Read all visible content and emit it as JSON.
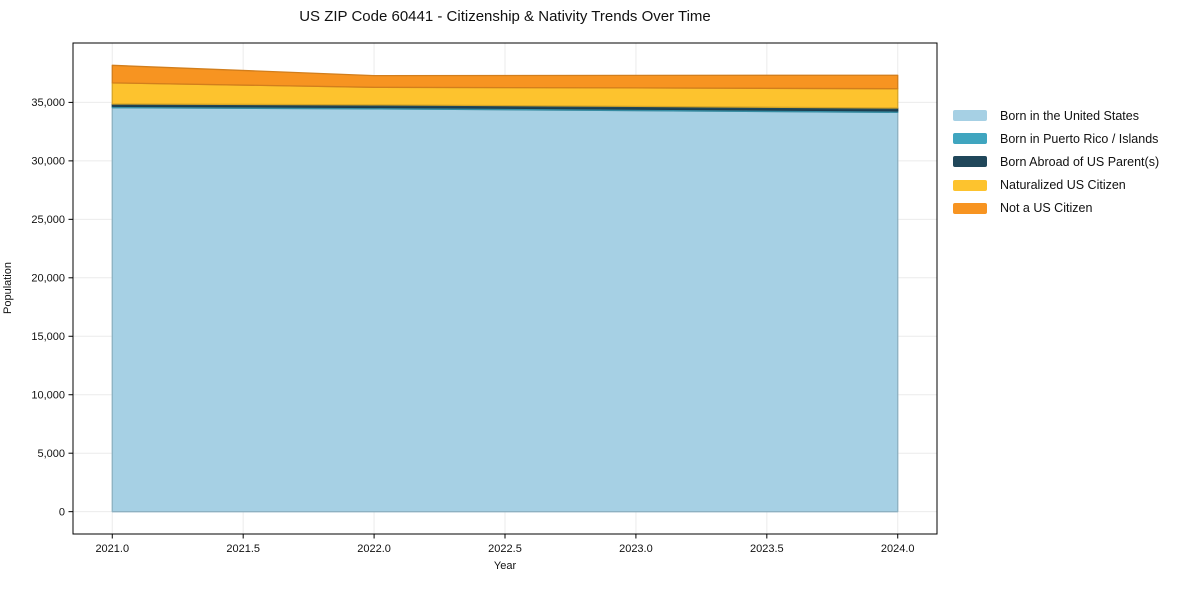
{
  "chart_data": {
    "type": "area",
    "stacked": true,
    "title": "US ZIP Code 60441 - Citizenship & Nativity Trends Over Time",
    "xlabel": "Year",
    "ylabel": "Population",
    "x": [
      2021,
      2022,
      2023,
      2024
    ],
    "series": [
      {
        "name": "Born in the United States",
        "color": "#a6d0e4",
        "values": [
          34550,
          34450,
          34300,
          34150
        ]
      },
      {
        "name": "Born in Puerto Rico / Islands",
        "color": "#3fa5bf",
        "values": [
          120,
          120,
          130,
          120
        ]
      },
      {
        "name": "Born Abroad of US Parent(s)",
        "color": "#20475a",
        "values": [
          200,
          220,
          230,
          250
        ]
      },
      {
        "name": "Naturalized US Citizen",
        "color": "#fdc32e",
        "values": [
          1800,
          1500,
          1580,
          1650
        ]
      },
      {
        "name": "Not a US Citizen",
        "color": "#f79421",
        "values": [
          1500,
          1000,
          1070,
          1150
        ]
      }
    ],
    "xticks": [
      2021.0,
      2021.5,
      2022.0,
      2022.5,
      2023.0,
      2023.5,
      2024.0
    ],
    "xtick_labels": [
      "2021.0",
      "2021.5",
      "2022.0",
      "2022.5",
      "2023.0",
      "2023.5",
      "2024.0"
    ],
    "yticks": [
      0,
      5000,
      10000,
      15000,
      20000,
      25000,
      30000,
      35000
    ],
    "ytick_labels": [
      "0",
      "5,000",
      "10,000",
      "15,000",
      "20,000",
      "25,000",
      "30,000",
      "35,000"
    ],
    "xlim": [
      2020.85,
      2024.15
    ],
    "ylim": [
      -1910,
      40080
    ],
    "grid": true,
    "legend_position": "right",
    "grid_color": "#ebebeb",
    "spine_color": "#000000",
    "tick_text_color": "#111111"
  }
}
